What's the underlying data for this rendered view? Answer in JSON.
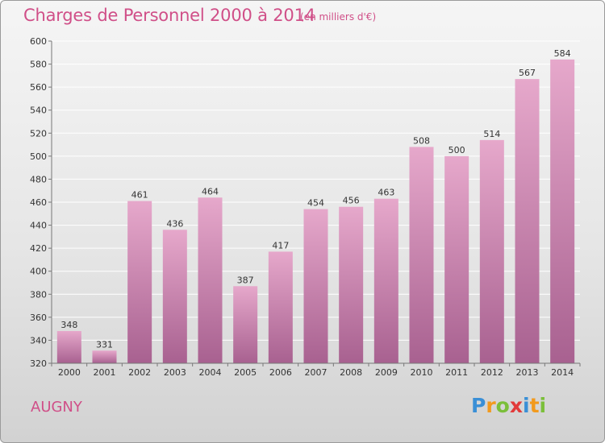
{
  "title": "Charges de Personnel 2000 à 2014",
  "subtitle": "(en milliers d'€)",
  "place": "AUGNY",
  "logo": {
    "letters": [
      "P",
      "r",
      "o",
      "x",
      "i",
      "t",
      "i"
    ],
    "colors": [
      "#3a8fd6",
      "#f29a1d",
      "#7bbf3a",
      "#e23a3a",
      "#3a8fd6",
      "#f29a1d",
      "#7bbf3a"
    ]
  },
  "colors": {
    "accent": "#d04f88",
    "bar_top": "#e6a8cb",
    "bar_bottom": "#a86190",
    "axis": "#777777",
    "grid": "#ffffff"
  },
  "chart_data": {
    "type": "bar",
    "categories": [
      "2000",
      "2001",
      "2002",
      "2003",
      "2004",
      "2005",
      "2006",
      "2007",
      "2008",
      "2009",
      "2010",
      "2011",
      "2012",
      "2013",
      "2014"
    ],
    "values": [
      348,
      331,
      461,
      436,
      464,
      387,
      417,
      454,
      456,
      463,
      508,
      500,
      514,
      567,
      584
    ],
    "ylim": [
      320,
      600
    ],
    "yticks": [
      320,
      340,
      360,
      380,
      400,
      420,
      440,
      460,
      480,
      500,
      520,
      540,
      560,
      580,
      600
    ],
    "grid": true,
    "data_labels": true
  }
}
